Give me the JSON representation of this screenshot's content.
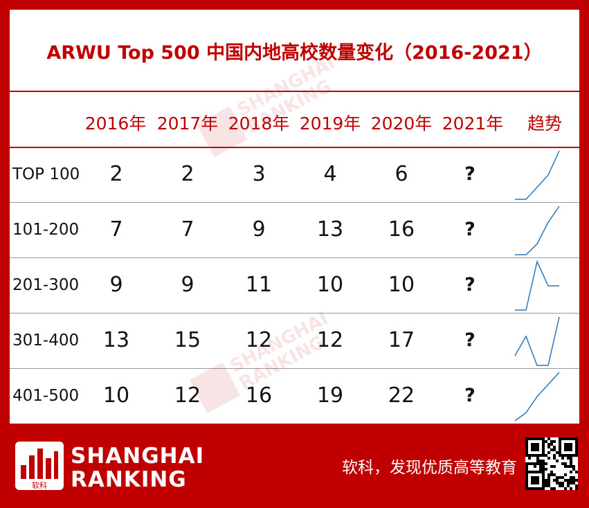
{
  "title": "ARWU Top 500 中国内地高校数量变化（2016-2021）",
  "colors": {
    "accent": "#c00000",
    "text": "#111111",
    "line": "#2e75b6"
  },
  "chart_data": {
    "type": "table",
    "columns": [
      "2016年",
      "2017年",
      "2018年",
      "2019年",
      "2020年",
      "2021年"
    ],
    "trend_header": "趋势",
    "rows": [
      {
        "label": "TOP 100",
        "values": [
          2,
          2,
          3,
          4,
          6
        ],
        "y2021": "?"
      },
      {
        "label": "101-200",
        "values": [
          7,
          7,
          9,
          13,
          16
        ],
        "y2021": "?"
      },
      {
        "label": "201-300",
        "values": [
          9,
          9,
          11,
          10,
          10
        ],
        "y2021": "?"
      },
      {
        "label": "301-400",
        "values": [
          13,
          15,
          12,
          12,
          17
        ],
        "y2021": "?"
      },
      {
        "label": "401-500",
        "values": [
          10,
          12,
          16,
          19,
          22
        ],
        "y2021": "?"
      }
    ]
  },
  "watermark": {
    "text_line1": "SHANGHAI",
    "text_line2": "RANKING",
    "logo_text": "软科"
  },
  "footer": {
    "brand_line1": "SHANGHAI",
    "brand_line2": "RANKING",
    "logo_text": "软科",
    "slogan": "软科，发现优质高等教育",
    "qr_icon": "qr-code-icon"
  }
}
